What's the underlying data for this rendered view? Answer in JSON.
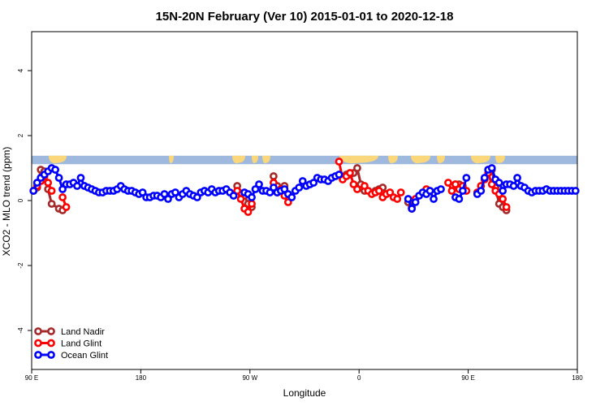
{
  "chart_data": {
    "type": "line",
    "title": "15N-20N February (Ver 10)   2015-01-01 to 2020-12-18",
    "xlabel": "Longitude",
    "ylabel": "XCO2 - MLO trend (ppm)",
    "xlim": [
      -90,
      60
    ],
    "ylim": [
      -5.2,
      5.2
    ],
    "xticks": [
      {
        "value": -90,
        "label": "90 E"
      },
      {
        "value": -60,
        "label": "180"
      },
      {
        "value": -30,
        "label": "90 W"
      },
      {
        "value": 0,
        "label": "0"
      },
      {
        "value": 30,
        "label": "90 E"
      },
      {
        "value": 60,
        "label": "180"
      }
    ],
    "yticks": [
      {
        "value": -4,
        "label": "-4"
      },
      {
        "value": -2,
        "label": "-2"
      },
      {
        "value": 0,
        "label": "0"
      },
      {
        "value": 2,
        "label": "2"
      },
      {
        "value": 4,
        "label": "4"
      }
    ],
    "land_strip": {
      "ymin": 1.12,
      "ymax": 1.38,
      "ocean_color": "#9fb8de",
      "land_color": "#f9d77a"
    },
    "legend_position": "bottom-left",
    "series": [
      {
        "name": "Land Nadir",
        "color": "#a52a2a",
        "segments": [
          {
            "x": [
              -89.5,
              -88.5,
              -87.5,
              -86.5,
              -85.5,
              -84.5,
              -82.5,
              -81.5
            ],
            "y": [
              0.3,
              0.4,
              0.95,
              0.9,
              0.35,
              -0.1,
              -0.25,
              -0.3
            ]
          },
          {
            "x": [
              -33.5,
              -31.5,
              -30.5,
              -29.5
            ],
            "y": [
              0.45,
              0.15,
              -0.1,
              -0.2
            ]
          },
          {
            "x": [
              -23.5,
              -22.5
            ],
            "y": [
              0.75,
              0.45
            ]
          },
          {
            "x": [
              -20.5,
              -19.5
            ],
            "y": [
              0.45,
              0.1
            ]
          },
          {
            "x": [
              -3.5,
              -2.5,
              -1.5,
              -0.5,
              0.5,
              1.5
            ],
            "y": [
              0.8,
              0.8,
              0.85,
              1.0,
              0.5,
              0.3
            ]
          },
          {
            "x": [
              4.5,
              5.5,
              6.5,
              7.5
            ],
            "y": [
              0.3,
              0.35,
              0.4,
              0.2
            ]
          },
          {
            "x": [
              13.5,
              14.5
            ],
            "y": [
              -0.05,
              -0.2
            ]
          },
          {
            "x": [
              26.5,
              27.5
            ],
            "y": [
              0.5,
              0.5
            ]
          },
          {
            "x": [
              35.5,
              36.5,
              37.5,
              38.5,
              39.5,
              40.5
            ],
            "y": [
              0.95,
              0.95,
              0.4,
              -0.1,
              -0.2,
              -0.3
            ]
          }
        ]
      },
      {
        "name": "Land Glint",
        "color": "#ff0000",
        "segments": [
          {
            "x": [
              -88.5,
              -87.5,
              -86.5,
              -85.5,
              -84.5
            ],
            "y": [
              0.45,
              0.6,
              0.75,
              0.55,
              0.3
            ]
          },
          {
            "x": [
              -81.5,
              -80.5
            ],
            "y": [
              0.1,
              -0.2
            ]
          },
          {
            "x": [
              -33.5,
              -32.5,
              -31.5,
              -30.5,
              -29.5
            ],
            "y": [
              0.3,
              0.05,
              -0.25,
              -0.35,
              -0.1
            ]
          },
          {
            "x": [
              -23.5,
              -22.5,
              -21.5,
              -20.5,
              -19.5
            ],
            "y": [
              0.55,
              0.25,
              0.35,
              0.15,
              -0.05
            ]
          },
          {
            "x": [
              -5.5,
              -4.5,
              -3.5,
              -2.5,
              -1.5,
              -0.5
            ],
            "y": [
              1.2,
              0.65,
              0.75,
              0.85,
              0.5,
              0.35
            ]
          },
          {
            "x": [
              1.5,
              2.5,
              3.5,
              4.5,
              5.5,
              6.5,
              7.5,
              8.5,
              9.5,
              10.5,
              11.5
            ],
            "y": [
              0.45,
              0.3,
              0.2,
              0.25,
              0.3,
              0.1,
              0.2,
              0.25,
              0.1,
              0.05,
              0.25
            ]
          },
          {
            "x": [
              14.5,
              15.5
            ],
            "y": [
              -0.25,
              0.05
            ]
          },
          {
            "x": [
              18.5
            ],
            "y": [
              0.35
            ]
          },
          {
            "x": [
              24.5,
              25.5,
              26.5,
              27.5,
              28.5,
              29.5
            ],
            "y": [
              0.55,
              0.3,
              0.5,
              0.35,
              0.45,
              0.3
            ]
          },
          {
            "x": [
              32.5,
              33.5,
              34.5,
              35.5,
              36.5,
              37.5,
              38.5
            ],
            "y": [
              0.25,
              0.45,
              0.65,
              0.85,
              0.5,
              0.3,
              0.2
            ]
          },
          {
            "x": [
              39.5,
              40.5
            ],
            "y": [
              0.05,
              -0.2
            ]
          }
        ]
      },
      {
        "name": "Ocean Glint",
        "color": "#0000ff",
        "segments": [
          {
            "x": [
              -89.5,
              -88.5,
              -87.5,
              -86.5,
              -85.5,
              -84.5,
              -83.5,
              -82.5,
              -81.5,
              -80.5,
              -79.5,
              -78.5
            ],
            "y": [
              0.3,
              0.55,
              0.7,
              0.8,
              0.9,
              1.0,
              0.95,
              0.7,
              0.35,
              0.5,
              0.5,
              0.55
            ]
          },
          {
            "x": [
              -77.5,
              -76.5,
              -75.5,
              -74.5,
              -73.5,
              -72.5,
              -71.5,
              -70.5,
              -69.5,
              -68.5,
              -67.5,
              -66.5,
              -65.5,
              -64.5,
              -63.5,
              -62.5,
              -61.5,
              -60.5,
              -59.5,
              -58.5,
              -57.5,
              -56.5,
              -55.5,
              -54.5,
              -53.5,
              -52.5,
              -51.5,
              -50.5,
              -49.5,
              -48.5,
              -47.5,
              -46.5,
              -45.5,
              -44.5,
              -43.5,
              -42.5,
              -41.5,
              -40.5,
              -39.5,
              -38.5,
              -37.5,
              -36.5,
              -35.5,
              -34.5
            ],
            "y": [
              0.45,
              0.7,
              0.45,
              0.4,
              0.35,
              0.3,
              0.25,
              0.25,
              0.3,
              0.3,
              0.3,
              0.35,
              0.45,
              0.35,
              0.3,
              0.3,
              0.25,
              0.2,
              0.25,
              0.1,
              0.1,
              0.15,
              0.15,
              0.1,
              0.2,
              0.05,
              0.2,
              0.25,
              0.1,
              0.2,
              0.3,
              0.2,
              0.15,
              0.1,
              0.25,
              0.3,
              0.25,
              0.35,
              0.25,
              0.3,
              0.3,
              0.35,
              0.25,
              0.15
            ]
          },
          {
            "x": [
              -31.5,
              -30.5,
              -29.5,
              -28.5,
              -27.5,
              -26.5,
              -25.5,
              -24.5,
              -23.5,
              -22.5,
              -21.5,
              -20.5,
              -19.5,
              -18.5,
              -17.5,
              -16.5,
              -15.5,
              -14.5,
              -13.5,
              -12.5,
              -11.5,
              -10.5,
              -9.5,
              -8.5,
              -7.5,
              -6.5,
              -5.5
            ],
            "y": [
              0.25,
              0.2,
              0.1,
              0.35,
              0.5,
              0.3,
              0.3,
              0.25,
              0.4,
              0.25,
              0.3,
              0.35,
              0.2,
              0.1,
              0.3,
              0.4,
              0.6,
              0.45,
              0.5,
              0.55,
              0.7,
              0.65,
              0.65,
              0.6,
              0.7,
              0.75,
              0.8
            ]
          },
          {
            "x": [
              13.5,
              14.5,
              15.5,
              16.5,
              17.5,
              18.5,
              19.5,
              20.5,
              21.5,
              22.5
            ],
            "y": [
              0.05,
              -0.25,
              -0.05,
              0.15,
              0.25,
              0.2,
              0.3,
              0.05,
              0.3,
              0.35
            ]
          },
          {
            "x": [
              26.5,
              27.5,
              28.5,
              29.5
            ],
            "y": [
              0.1,
              0.05,
              0.3,
              0.7
            ]
          },
          {
            "x": [
              32.5,
              33.5,
              34.5,
              35.5,
              36.5,
              37.5,
              38.5,
              39.5,
              40.5,
              41.5,
              42.5,
              43.5,
              44.5,
              45.5,
              46.5,
              47.5,
              48.5,
              49.5,
              50.5,
              51.5,
              52.5,
              53.5,
              54.5,
              55.5,
              56.5,
              57.5,
              58.5,
              59.5
            ],
            "y": [
              0.2,
              0.3,
              0.7,
              0.95,
              1.0,
              0.65,
              0.55,
              0.3,
              0.5,
              0.5,
              0.45,
              0.7,
              0.45,
              0.4,
              0.3,
              0.25,
              0.3,
              0.3,
              0.3,
              0.35,
              0.3,
              0.3,
              0.3,
              0.3,
              0.3,
              0.3,
              0.3,
              0.3
            ]
          }
        ]
      }
    ]
  }
}
